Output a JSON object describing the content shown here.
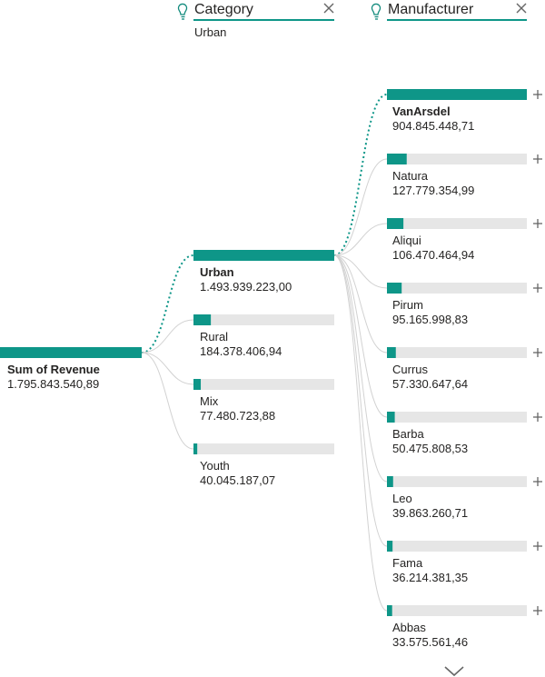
{
  "colors": {
    "accent": "#0e9688",
    "track": "#e6e6e6",
    "connector": "#d2d2d2",
    "dotted": "#0e9688"
  },
  "icons": {
    "level_header": "lightbulb-icon",
    "remove": "close-icon",
    "expand": "plus-icon",
    "scroll": "chevron-down-icon"
  },
  "chart_data": {
    "type": "decomposition-tree",
    "levels": [
      {
        "title": "",
        "filter": ""
      },
      {
        "title": "Category",
        "filter": "Urban"
      },
      {
        "title": "Manufacturer",
        "filter": ""
      }
    ],
    "nodes": [
      [
        {
          "name": "Sum of Revenue",
          "value": 1795843540.89,
          "label": "1.795.843.540,89",
          "selected": true
        }
      ],
      [
        {
          "name": "Urban",
          "value": 1493939223.0,
          "label": "1.493.939.223,00",
          "selected": true
        },
        {
          "name": "Rural",
          "value": 184378406.94,
          "label": "184.378.406,94",
          "selected": false
        },
        {
          "name": "Mix",
          "value": 77480723.88,
          "label": "77.480.723,88",
          "selected": false
        },
        {
          "name": "Youth",
          "value": 40045187.07,
          "label": "40.045.187,07",
          "selected": false
        }
      ],
      [
        {
          "name": "VanArsdel",
          "value": 904845448.71,
          "label": "904.845.448,71",
          "selected": true
        },
        {
          "name": "Natura",
          "value": 127779354.99,
          "label": "127.779.354,99",
          "selected": false
        },
        {
          "name": "Aliqui",
          "value": 106470464.94,
          "label": "106.470.464,94",
          "selected": false
        },
        {
          "name": "Pirum",
          "value": 95165998.83,
          "label": "95.165.998,83",
          "selected": false
        },
        {
          "name": "Currus",
          "value": 57330647.64,
          "label": "57.330.647,64",
          "selected": false
        },
        {
          "name": "Barba",
          "value": 50475808.53,
          "label": "50.475.808,53",
          "selected": false
        },
        {
          "name": "Leo",
          "value": 39863260.71,
          "label": "39.863.260,71",
          "selected": false
        },
        {
          "name": "Fama",
          "value": 36214381.35,
          "label": "36.214.381,35",
          "selected": false
        },
        {
          "name": "Abbas",
          "value": 33575561.46,
          "label": "33.575.561,46",
          "selected": false
        }
      ]
    ]
  }
}
